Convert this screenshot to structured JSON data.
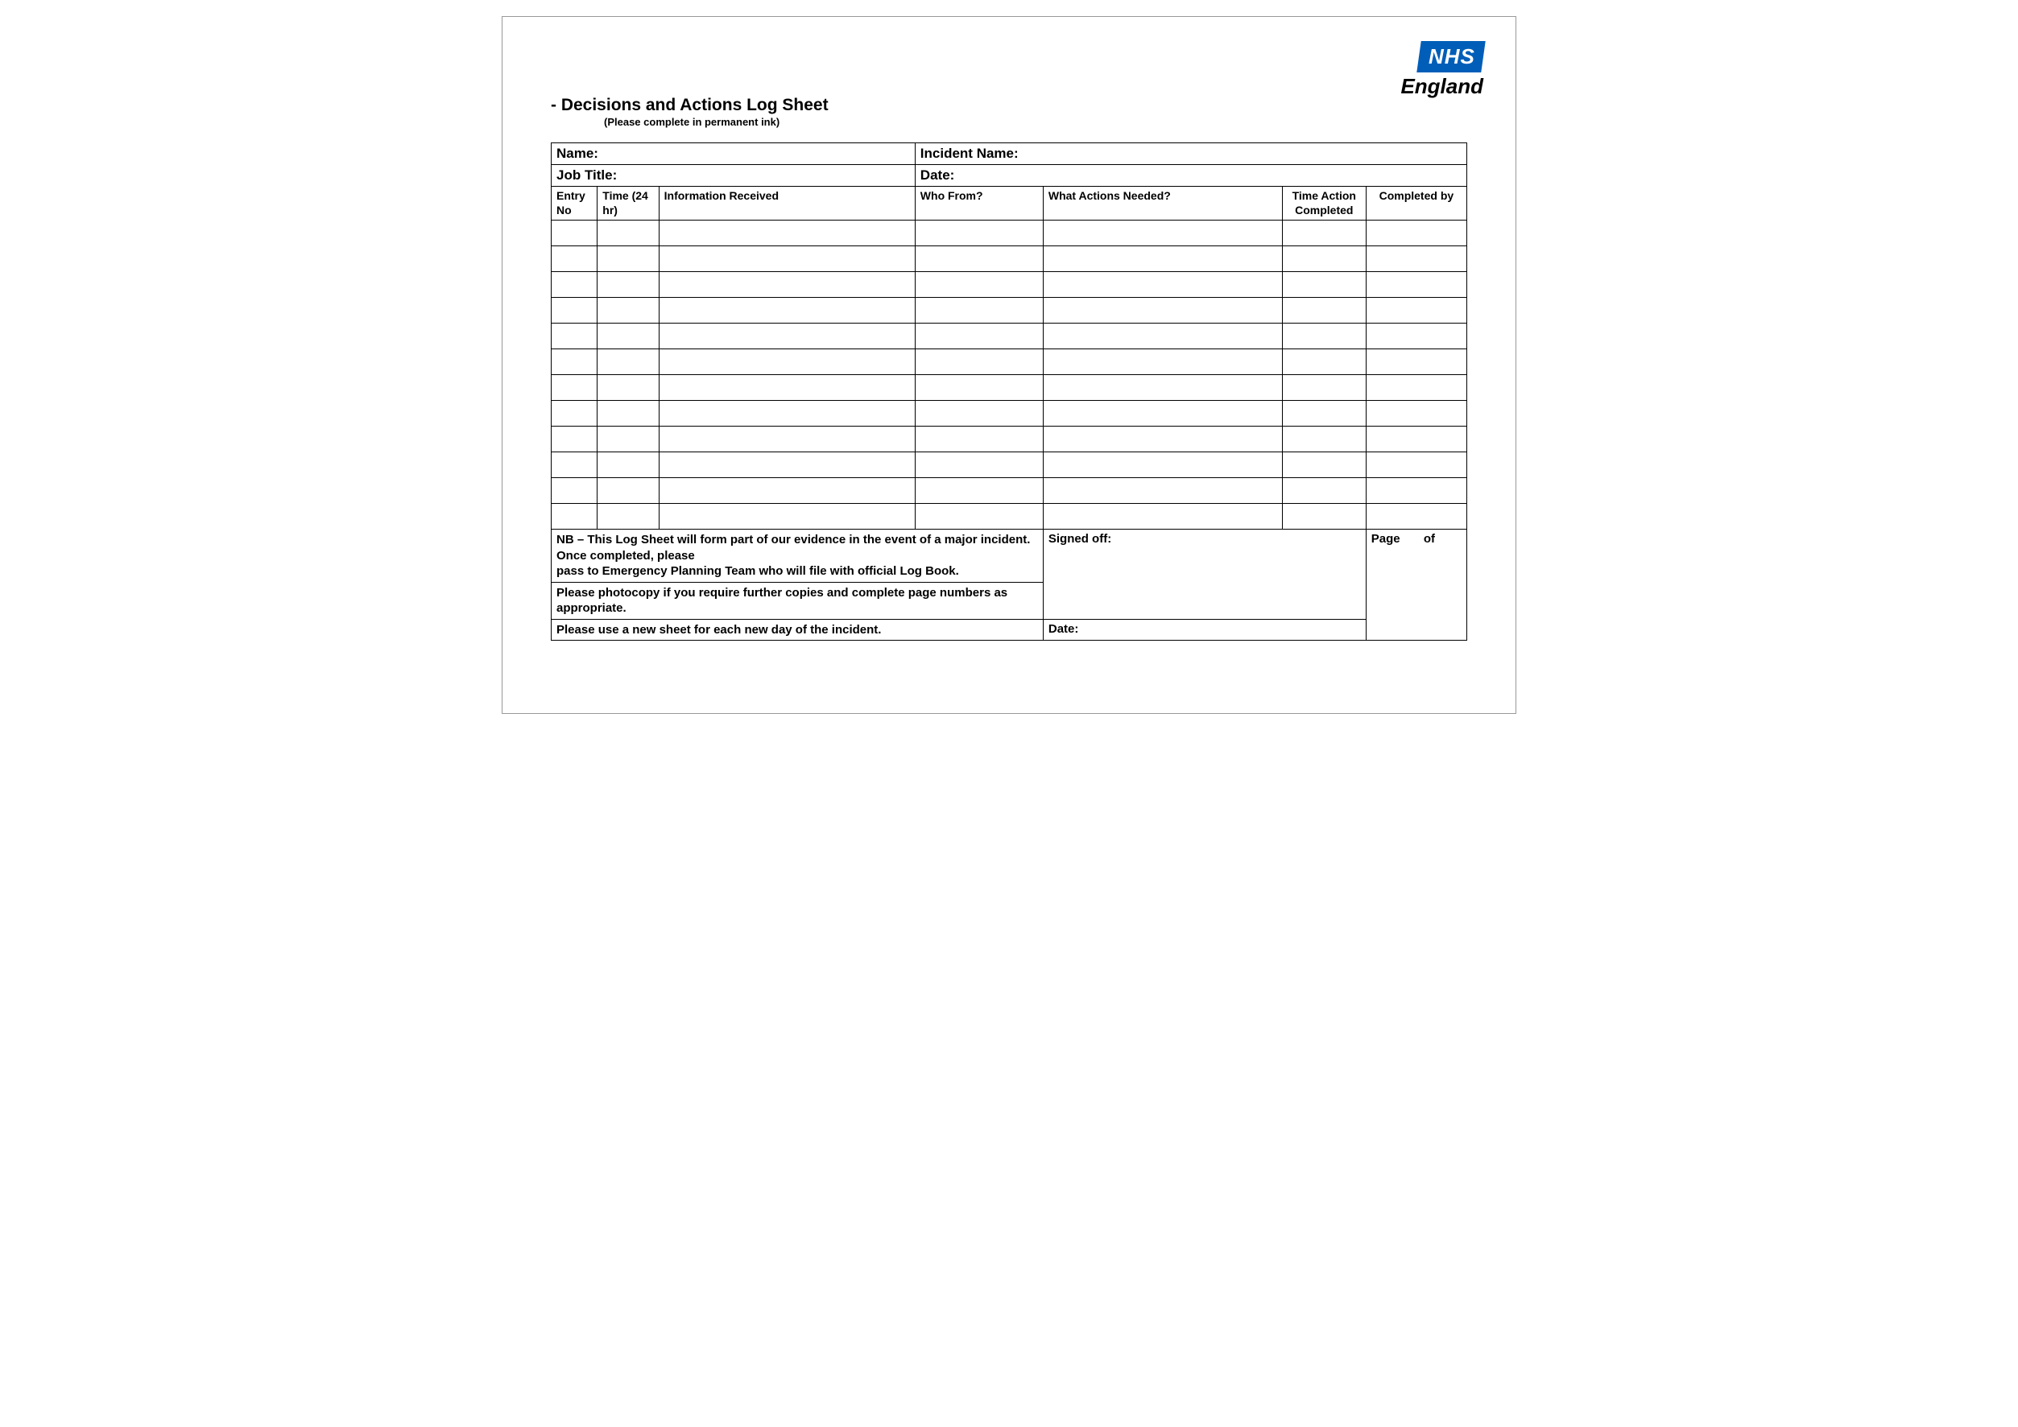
{
  "logo": {
    "top_text": "NHS",
    "bottom_text": "England",
    "block_bg": "#005eb8",
    "block_fg": "#ffffff"
  },
  "title": {
    "main": "- Decisions and Actions Log Sheet",
    "sub": "(Please complete in permanent ink)"
  },
  "meta": {
    "name_label": "Name:",
    "incident_label": "Incident Name:",
    "job_label": "Job Title:",
    "date_label": "Date:"
  },
  "columns": {
    "entry_no": "Entry No",
    "time_24hr": "Time (24 hr)",
    "info_received": "Information Received",
    "who_from": "Who From?",
    "actions_needed": "What Actions Needed?",
    "time_action_completed": "Time Action Completed",
    "completed_by": "Completed by"
  },
  "col_widths": {
    "entry_no": "54px",
    "time_24hr": "72px",
    "info_received": "300px",
    "who_from": "150px",
    "actions_needed": "280px",
    "time_action_completed": "98px",
    "completed_by": "118px"
  },
  "blank_row_count": 12,
  "footer": {
    "nb_line1": "NB – This Log Sheet will form part of our evidence in the event of a major incident.  Once completed, please",
    "nb_line2": "pass to Emergency Planning Team who will file with official Log Book.",
    "photocopy": "Please photocopy if you require further copies and complete page numbers as appropriate.",
    "new_sheet": "Please use a new sheet for each new day of the incident.",
    "signed_off": "Signed off:",
    "date": "Date:",
    "page_prefix": "Page",
    "page_of": "of"
  }
}
